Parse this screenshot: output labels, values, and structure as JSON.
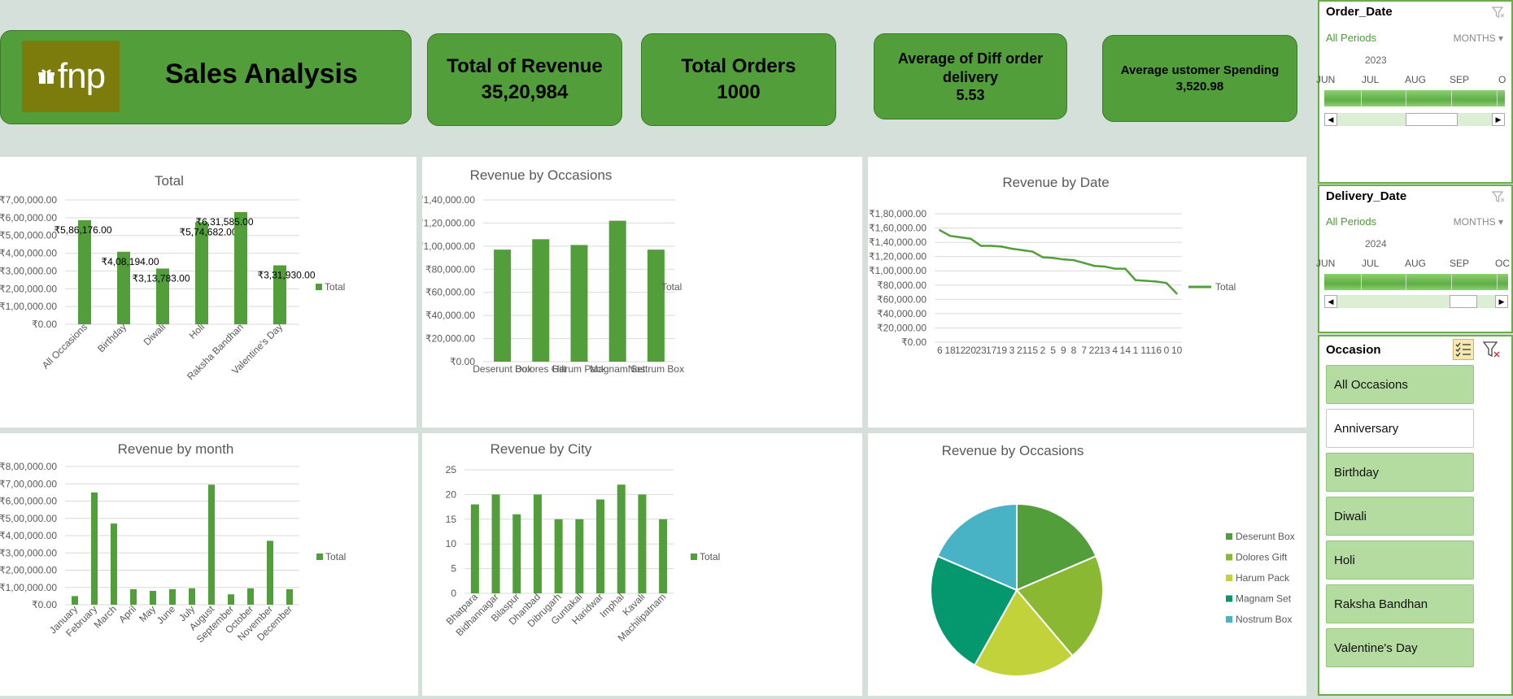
{
  "header": {
    "brand": "fnp",
    "title": "Sales Analysis"
  },
  "kpis": [
    {
      "label": "Total of Revenue",
      "value": "35,20,984"
    },
    {
      "label": "Total Orders",
      "value": "1000"
    },
    {
      "label": "Average of Diff order delivery",
      "value": "5.53"
    },
    {
      "label": "Average ustomer Spending",
      "value": "3,520.98"
    }
  ],
  "colors": {
    "bar": "#529e3a",
    "kpi": "#529e3a",
    "logo_bg": "#7c7c0c"
  },
  "slicers": {
    "order_date": {
      "title": "Order_Date",
      "selection": "All Periods",
      "level": "MONTHS",
      "year": "2023",
      "months": [
        "JUN",
        "JUL",
        "AUG",
        "SEP",
        "O"
      ]
    },
    "delivery_date": {
      "title": "Delivery_Date",
      "selection": "All Periods",
      "level": "MONTHS",
      "year": "2024",
      "months": [
        "JUN",
        "JUL",
        "AUG",
        "SEP",
        "OC"
      ]
    },
    "occasion": {
      "title": "Occasion",
      "items": [
        {
          "label": "All Occasions",
          "selected": true
        },
        {
          "label": "Anniversary",
          "selected": false
        },
        {
          "label": "Birthday",
          "selected": true
        },
        {
          "label": "Diwali",
          "selected": true
        },
        {
          "label": "Holi",
          "selected": true
        },
        {
          "label": "Raksha Bandhan",
          "selected": true
        },
        {
          "label": "Valentine's Day",
          "selected": true
        }
      ]
    }
  },
  "chart_data": [
    {
      "id": "c1",
      "type": "bar",
      "title": "Total",
      "legend": "Total",
      "legend_position": "right",
      "categories": [
        "All Occasions",
        "Birthday",
        "Diwali",
        "Holi",
        "Raksha Bandhan",
        "Valentine's Day"
      ],
      "values": [
        586176,
        408194,
        313783,
        574682,
        631585,
        331930
      ],
      "data_labels": [
        "₹5,86,176.00",
        "₹4,08,194.00",
        "₹3,13,783.00",
        "₹5,74,682.00",
        "₹6,31,585.00",
        "₹3,31,930.00"
      ],
      "ylim": [
        0,
        700000
      ],
      "yticks": [
        "₹0.00",
        "₹1,00,000.00",
        "₹2,00,000.00",
        "₹3,00,000.00",
        "₹4,00,000.00",
        "₹5,00,000.00",
        "₹6,00,000.00",
        "₹7,00,000.00"
      ]
    },
    {
      "id": "c2",
      "type": "bar",
      "title": "Revenue by Occasions",
      "legend": "Total",
      "legend_position": "right",
      "categories": [
        "Deserunt Box",
        "Dolores Gift",
        "Harum Pack",
        "Magnam Set",
        "Nostrum Box"
      ],
      "values": [
        97000,
        106000,
        101000,
        122000,
        97000
      ],
      "ylim": [
        0,
        140000
      ],
      "yticks": [
        "₹0.00",
        "₹20,000.00",
        "₹40,000.00",
        "₹60,000.00",
        "₹80,000.00",
        "₹1,00,000.00",
        "₹1,20,000.00",
        "₹1,40,000.00"
      ]
    },
    {
      "id": "c3",
      "type": "line",
      "title": "Revenue by Date",
      "legend": "Total",
      "legend_position": "right",
      "categories": [
        "6",
        "18",
        "12",
        "20",
        "23",
        "17",
        "19",
        "3",
        "21",
        "15",
        "2",
        "5",
        "9",
        "8",
        "7",
        "22",
        "13",
        "4",
        "14",
        "1",
        "11",
        "16",
        "0",
        "10"
      ],
      "values": [
        157000,
        149000,
        147000,
        145000,
        135000,
        135000,
        134000,
        131000,
        129000,
        127000,
        119000,
        118000,
        116000,
        115000,
        111000,
        107000,
        106000,
        103000,
        103000,
        87000,
        86000,
        85000,
        83000,
        68000
      ],
      "ylim": [
        0,
        180000
      ],
      "yticks": [
        "₹0.00",
        "₹20,000.00",
        "₹40,000.00",
        "₹60,000.00",
        "₹80,000.00",
        "₹1,00,000.00",
        "₹1,20,000.00",
        "₹1,40,000.00",
        "₹1,60,000.00",
        "₹1,80,000.00"
      ]
    },
    {
      "id": "c4",
      "type": "bar",
      "title": "Revenue by month",
      "legend": "Total",
      "legend_position": "right",
      "categories": [
        "January",
        "February",
        "March",
        "April",
        "May",
        "June",
        "July",
        "August",
        "September",
        "October",
        "November",
        "December"
      ],
      "values": [
        50000,
        650000,
        470000,
        90000,
        80000,
        90000,
        95000,
        695000,
        60000,
        95000,
        370000,
        90000
      ],
      "ylim": [
        0,
        800000
      ],
      "yticks": [
        "₹0.00",
        "₹1,00,000.00",
        "₹2,00,000.00",
        "₹3,00,000.00",
        "₹4,00,000.00",
        "₹5,00,000.00",
        "₹6,00,000.00",
        "₹7,00,000.00",
        "₹8,00,000.00"
      ]
    },
    {
      "id": "c5",
      "type": "bar",
      "title": "Revenue by City",
      "legend": "Total",
      "legend_position": "right",
      "categories": [
        "Bhatpara",
        "Bidhannagar",
        "Bilaspur",
        "Dhanbad",
        "Dibrugarh",
        "Guntakal",
        "Haridwar",
        "Imphal",
        "Kavali",
        "Machilipatnam"
      ],
      "values": [
        18,
        20,
        16,
        20,
        15,
        15,
        19,
        22,
        20,
        15
      ],
      "ylim": [
        0,
        25
      ],
      "yticks": [
        "0",
        "5",
        "10",
        "15",
        "20",
        "25"
      ]
    },
    {
      "id": "c6",
      "type": "pie",
      "title": "Revenue by  Occasions",
      "legend_position": "right",
      "categories": [
        "Deserunt Box",
        "Dolores Gift",
        "Harum Pack",
        "Magnam Set",
        "Nostrum Box"
      ],
      "values": [
        97000,
        106000,
        101000,
        122000,
        97000
      ],
      "colors": [
        "#529e3a",
        "#8ab832",
        "#c2d23a",
        "#05976e",
        "#49b3c6"
      ]
    }
  ]
}
